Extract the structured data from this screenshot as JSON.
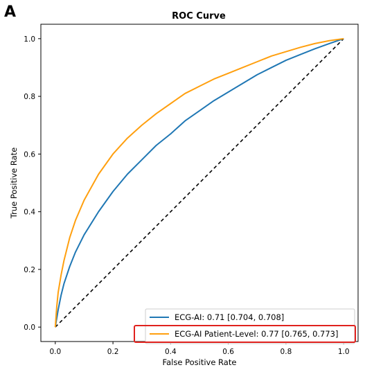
{
  "panel_label": "A",
  "chart_data": {
    "type": "line",
    "title": "ROC Curve",
    "xlabel": "False Positive Rate",
    "ylabel": "True Positive Rate",
    "xlim": [
      -0.05,
      1.05
    ],
    "ylim": [
      -0.05,
      1.05
    ],
    "xticks": [
      0.0,
      0.2,
      0.4,
      0.6,
      0.8,
      1.0
    ],
    "yticks": [
      0.0,
      0.2,
      0.4,
      0.6,
      0.8,
      1.0
    ],
    "xtick_labels": [
      "0.0",
      "0.2",
      "0.4",
      "0.6",
      "0.8",
      "1.0"
    ],
    "ytick_labels": [
      "0.0",
      "0.2",
      "0.4",
      "0.6",
      "0.8",
      "1.0"
    ],
    "grid": false,
    "legend_position": "lower-right",
    "series": [
      {
        "name": "ECG-AI: 0.71 [0.704, 0.708]",
        "color": "#1f77b4",
        "x": [
          0.0,
          0.005,
          0.01,
          0.02,
          0.03,
          0.05,
          0.07,
          0.1,
          0.15,
          0.2,
          0.25,
          0.3,
          0.35,
          0.4,
          0.45,
          0.5,
          0.55,
          0.6,
          0.65,
          0.7,
          0.75,
          0.8,
          0.85,
          0.9,
          0.95,
          1.0
        ],
        "y": [
          0.0,
          0.03,
          0.06,
          0.11,
          0.15,
          0.21,
          0.26,
          0.32,
          0.4,
          0.47,
          0.53,
          0.58,
          0.63,
          0.67,
          0.715,
          0.75,
          0.785,
          0.815,
          0.845,
          0.875,
          0.9,
          0.925,
          0.945,
          0.965,
          0.983,
          1.0
        ]
      },
      {
        "name": "ECG-AI Patient-Level: 0.77 [0.765, 0.773]",
        "color": "#ff9f0e",
        "x": [
          0.0,
          0.005,
          0.01,
          0.02,
          0.03,
          0.05,
          0.07,
          0.1,
          0.15,
          0.2,
          0.25,
          0.3,
          0.35,
          0.4,
          0.45,
          0.5,
          0.55,
          0.6,
          0.65,
          0.7,
          0.75,
          0.8,
          0.85,
          0.9,
          0.95,
          1.0
        ],
        "y": [
          0.0,
          0.07,
          0.12,
          0.18,
          0.23,
          0.31,
          0.37,
          0.44,
          0.53,
          0.6,
          0.655,
          0.7,
          0.74,
          0.775,
          0.81,
          0.835,
          0.86,
          0.88,
          0.9,
          0.92,
          0.94,
          0.955,
          0.97,
          0.983,
          0.993,
          1.0
        ]
      }
    ],
    "reference_line": {
      "x": [
        0,
        1
      ],
      "y": [
        0,
        1
      ],
      "style": "dashed",
      "color": "#000000"
    },
    "highlight": {
      "series_index": 1,
      "color": "#e0211d"
    }
  }
}
